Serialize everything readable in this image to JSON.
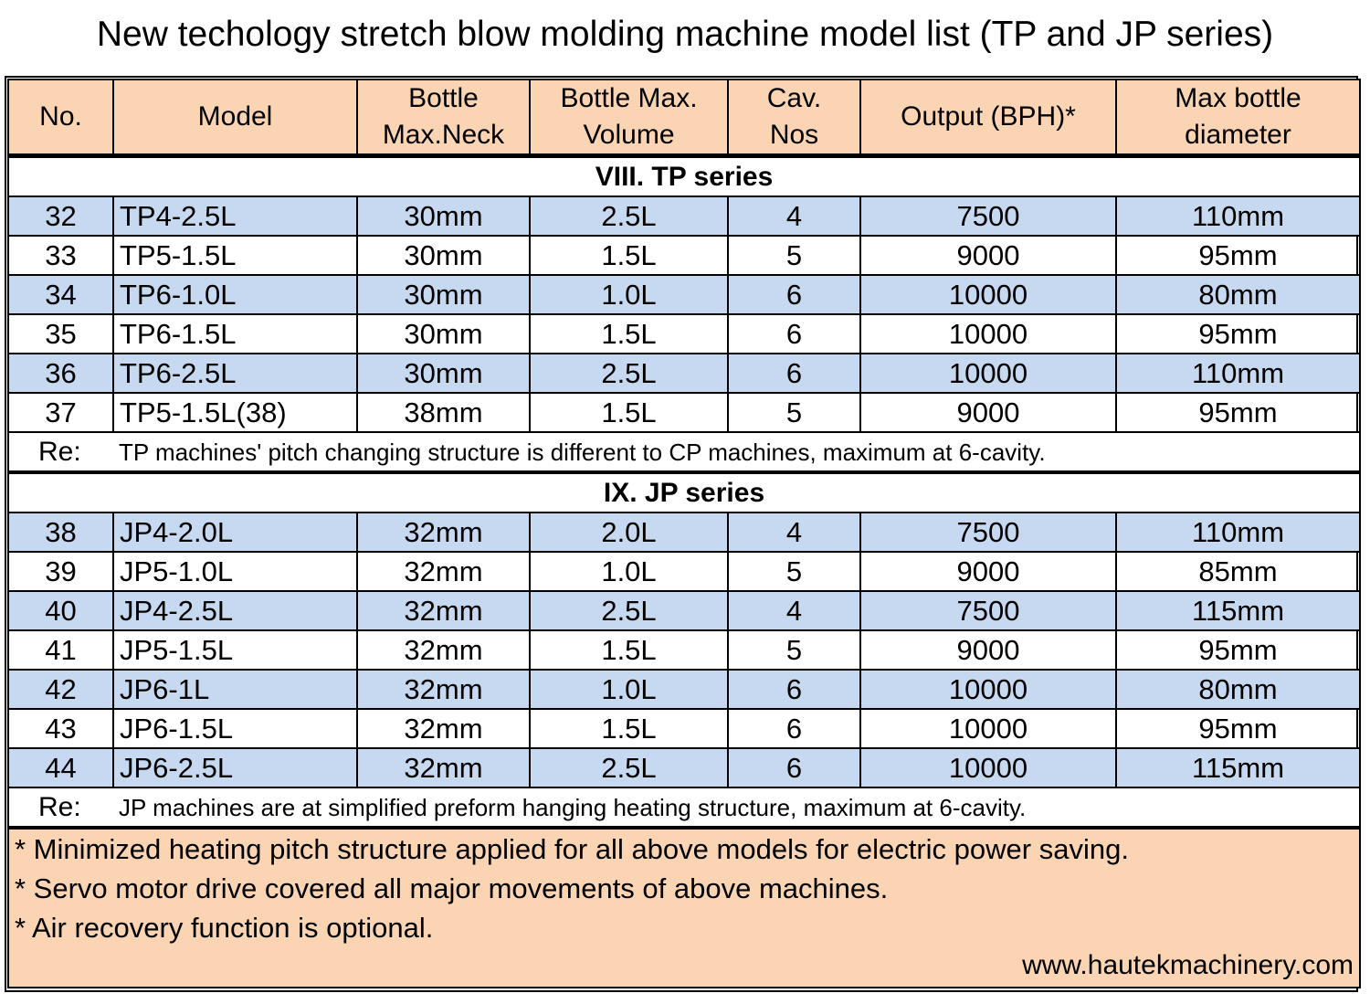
{
  "title": "New techology stretch blow molding machine model list (TP and JP series)",
  "headers": [
    "No.",
    "Model",
    "Bottle Max.Neck",
    "Bottle Max. Volume",
    "Cav. Nos",
    "Output (BPH)*",
    "Max bottle diameter"
  ],
  "header_lines": [
    [
      "No."
    ],
    [
      "Model"
    ],
    [
      "Bottle",
      "Max.Neck"
    ],
    [
      "Bottle Max.",
      "Volume"
    ],
    [
      "Cav.",
      "Nos"
    ],
    [
      "Output (BPH)*"
    ],
    [
      "Max bottle",
      "diameter"
    ]
  ],
  "sections": [
    {
      "title": "VIII. TP series",
      "rows": [
        [
          "32",
          "TP4-2.5L",
          "30mm",
          "2.5L",
          "4",
          "7500",
          "110mm"
        ],
        [
          "33",
          "TP5-1.5L",
          "30mm",
          "1.5L",
          "5",
          "9000",
          "95mm"
        ],
        [
          "34",
          "TP6-1.0L",
          "30mm",
          "1.0L",
          "6",
          "10000",
          "80mm"
        ],
        [
          "35",
          "TP6-1.5L",
          "30mm",
          "1.5L",
          "6",
          "10000",
          "95mm"
        ],
        [
          "36",
          "TP6-2.5L",
          "30mm",
          "2.5L",
          "6",
          "10000",
          "110mm"
        ],
        [
          "37",
          "TP5-1.5L(38)",
          "38mm",
          "1.5L",
          "5",
          "9000",
          "95mm"
        ]
      ],
      "note_label": "Re:",
      "note": "TP machines' pitch changing structure is different to CP machines, maximum at 6-cavity."
    },
    {
      "title": "IX. JP series",
      "rows": [
        [
          "38",
          "JP4-2.0L",
          "32mm",
          "2.0L",
          "4",
          "7500",
          "110mm"
        ],
        [
          "39",
          "JP5-1.0L",
          "32mm",
          "1.0L",
          "5",
          "9000",
          "85mm"
        ],
        [
          "40",
          "JP4-2.5L",
          "32mm",
          "2.5L",
          "4",
          "7500",
          "115mm"
        ],
        [
          "41",
          "JP5-1.5L",
          "32mm",
          "1.5L",
          "5",
          "9000",
          "95mm"
        ],
        [
          "42",
          "JP6-1L",
          "32mm",
          "1.0L",
          "6",
          "10000",
          "80mm"
        ],
        [
          "43",
          "JP6-1.5L",
          "32mm",
          "1.5L",
          "6",
          "10000",
          "95mm"
        ],
        [
          "44",
          "JP6-2.5L",
          "32mm",
          "2.5L",
          "6",
          "10000",
          "115mm"
        ]
      ],
      "note_label": "Re:",
      "note": "JP machines are at simplified preform hanging heating structure, maximum at 6-cavity."
    }
  ],
  "footnotes": [
    "* Minimized heating pitch structure applied for all above models for electric power saving.",
    "* Servo motor drive covered all major movements of above machines.",
    "* Air recovery function is optional."
  ],
  "website": "www.hautekmachinery.com",
  "colors": {
    "header_bg": "#fbd4b4",
    "row_shade": "#c6d9f1",
    "footer_bg": "#fbd4b4"
  }
}
